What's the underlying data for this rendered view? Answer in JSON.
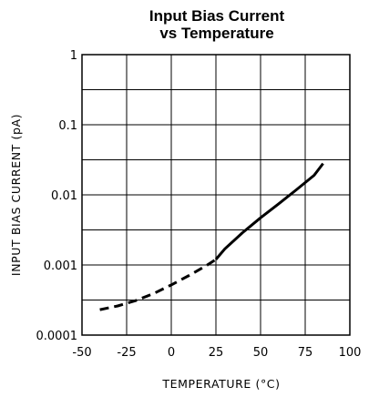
{
  "chart_data": {
    "type": "line",
    "title_line1": "Input Bias Current",
    "title_line2": "vs Temperature",
    "xlabel": "TEMPERATURE (°C)",
    "ylabel": "INPUT BIAS CURRENT (pA)",
    "xlim": [
      -50,
      100
    ],
    "ylim": [
      0.0001,
      1
    ],
    "y_scale": "log",
    "x_ticks": [
      -50,
      -25,
      0,
      25,
      50,
      75,
      100
    ],
    "x_tick_labels": [
      "-50",
      "-25",
      "0",
      "25",
      "50",
      "75",
      "100"
    ],
    "y_tick_values": [
      0.0001,
      0.001,
      0.01,
      0.1,
      1
    ],
    "y_tick_labels": [
      "0.0001",
      "0.001",
      "0.01",
      "0.1",
      "1"
    ],
    "grid": true,
    "series": [
      {
        "style": "dashed",
        "x": [
          -40,
          -30,
          -20,
          -10,
          0,
          10,
          20,
          25
        ],
        "y": [
          0.00023,
          0.00026,
          0.00031,
          0.00039,
          0.00052,
          0.00071,
          0.00099,
          0.0012
        ]
      },
      {
        "style": "solid",
        "x": [
          25,
          30,
          40,
          50,
          60,
          70,
          80,
          85
        ],
        "y": [
          0.0012,
          0.0017,
          0.0029,
          0.0047,
          0.0074,
          0.0118,
          0.019,
          0.028
        ]
      }
    ],
    "colors": {
      "line": "#000000",
      "grid": "#000000",
      "background": "#ffffff"
    }
  }
}
